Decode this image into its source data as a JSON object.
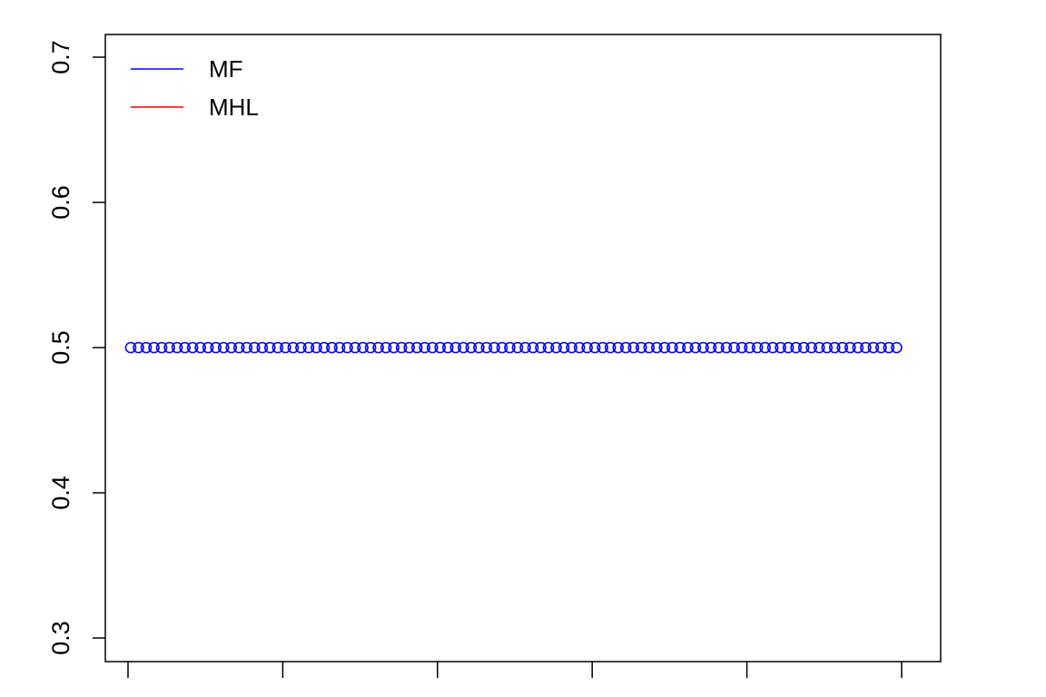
{
  "chart_data": {
    "type": "scatter",
    "title": "",
    "xlabel": "",
    "ylabel": "",
    "xlim": [
      1,
      100
    ],
    "ylim": [
      0.3,
      0.7
    ],
    "x_ticks": [
      1,
      21,
      41,
      61,
      81,
      101
    ],
    "y_ticks": [
      0.3,
      0.4,
      0.5,
      0.6,
      0.7
    ],
    "y_tick_labels": [
      "0.3",
      "0.4",
      "0.5",
      "0.6",
      "0.7"
    ],
    "legend_position": "top-left",
    "legend": [
      {
        "label": "MF",
        "color": "#0000ff"
      },
      {
        "label": "MHL",
        "color": "#ff0000"
      }
    ],
    "series": [
      {
        "name": "MF",
        "color": "#0000ff",
        "marker": "open-circle",
        "x_start": 1,
        "x_end": 100,
        "value": 0.5
      }
    ]
  }
}
